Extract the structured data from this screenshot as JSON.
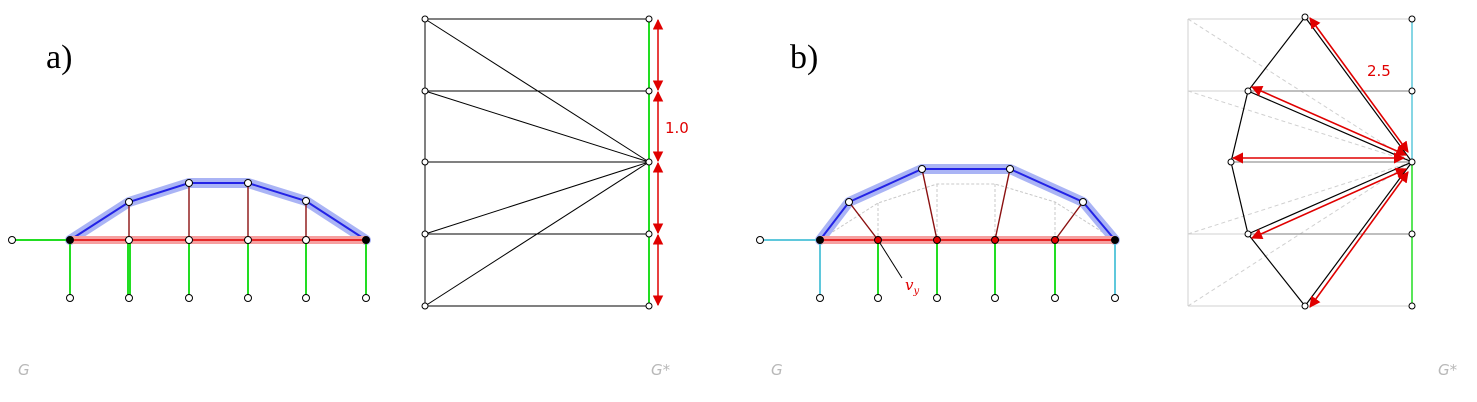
{
  "panels": {
    "a": {
      "label": "a)",
      "graph_label": "G",
      "reciprocal_label": "G*",
      "force_value": "1.0"
    },
    "b": {
      "label": "b)",
      "graph_label": "G",
      "reciprocal_label": "G*",
      "force_value": "2.5",
      "vertex_label": "v",
      "vertex_subscript": "y"
    }
  },
  "colors": {
    "compression_chord": "#2323e6",
    "compression_halo": "#aab4f5",
    "tension_chord": "#e00000",
    "tension_halo": "#f6a0a0",
    "hangers": "#8b1010",
    "supports": "#22dd22",
    "supports_b_ends": "#5fc8dc",
    "force_lines": "#000000",
    "force_arrows": "#e00000",
    "faded_lines": "#c8c8c8",
    "fixed_node": "#000000",
    "free_node": "#ffffff",
    "loaded_node": "#e00000"
  }
}
